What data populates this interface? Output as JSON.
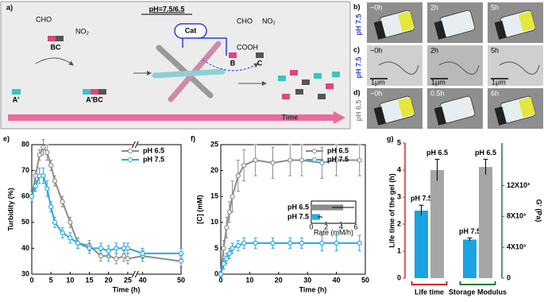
{
  "scheme": {
    "label": "a)",
    "title": "pH=7.5/6.5",
    "bc": "BC",
    "a": "A'",
    "abc": "A'BC",
    "cat": "Cat",
    "b": "B",
    "c": "C",
    "time": "Time",
    "cho": "CHO",
    "cooh": "COOH",
    "no2a": "NO₂",
    "no2b": "NO₂"
  },
  "photos": {
    "rows": [
      {
        "label": "b)",
        "side": "pH 7.5",
        "color": "#2a3fd6",
        "items": [
          "~0h",
          "2h",
          "5h"
        ]
      },
      {
        "label": "c)",
        "side": "pH 7.5",
        "color": "#2a3fd6",
        "items": [
          "~0h",
          "2h",
          "5h"
        ],
        "scale": "1μm"
      },
      {
        "label": "d)",
        "side": "pH 6.5",
        "color": "#8c8c8c",
        "items": [
          "~0h",
          "0.5h",
          "6h"
        ]
      }
    ]
  },
  "chart_data": [
    {
      "type": "line",
      "label": "e)",
      "xlabel": "Time (h)",
      "ylabel": "Turbidity (%)",
      "xlim": [
        0,
        50
      ],
      "xbreak": [
        25,
        40
      ],
      "xticks": [
        0,
        5,
        10,
        15,
        20,
        25,
        40,
        50
      ],
      "ylim": [
        30,
        80
      ],
      "yticks": [
        30,
        40,
        50,
        60,
        70,
        80
      ],
      "legend": "upper right",
      "x": [
        0,
        1,
        2,
        3,
        4,
        5,
        6,
        8,
        10,
        12,
        15,
        18,
        20,
        22,
        24,
        25,
        40,
        50
      ],
      "series": [
        {
          "name": "pH 6.5",
          "color": "#8c8c8c",
          "values": [
            60,
            68,
            76,
            79,
            77,
            72,
            66,
            58,
            50,
            42,
            41,
            37,
            37,
            36,
            37,
            36,
            37,
            35
          ],
          "errors": [
            2,
            2,
            2,
            3,
            3,
            2,
            2,
            2,
            2,
            2,
            2,
            2,
            2,
            2,
            2,
            2,
            2,
            2
          ]
        },
        {
          "name": "pH 7.5",
          "color": "#29a9e1",
          "values": [
            60,
            64,
            68,
            68,
            63,
            56,
            50,
            46,
            44,
            42,
            40,
            40,
            39,
            40,
            40,
            40,
            38,
            38
          ],
          "errors": [
            2,
            2,
            3,
            3,
            3,
            2,
            2,
            2,
            2,
            2,
            2,
            2,
            2,
            2,
            2,
            2,
            2,
            2
          ]
        }
      ]
    },
    {
      "type": "line",
      "label": "f)",
      "xlabel": "Time (h)",
      "ylabel": "[C] (mM)",
      "xlim": [
        0,
        50
      ],
      "xticks": [
        0,
        10,
        20,
        30,
        40,
        50
      ],
      "ylim": [
        0,
        25
      ],
      "yticks": [
        0,
        5,
        10,
        15,
        20,
        25
      ],
      "legend": "upper right",
      "x": [
        0,
        1,
        2,
        3,
        4,
        6,
        8,
        12,
        18,
        24,
        28,
        35,
        40,
        48
      ],
      "series": [
        {
          "name": "pH 6.5",
          "color": "#8c8c8c",
          "values": [
            0,
            5,
            9,
            12,
            15,
            19,
            21,
            22,
            21.5,
            22,
            22,
            21.5,
            22,
            22
          ],
          "errors": [
            0.5,
            1.5,
            2,
            2,
            3,
            3,
            3,
            3,
            3,
            3,
            3,
            3,
            3,
            3
          ]
        },
        {
          "name": "pH 7.5",
          "color": "#29a9e1",
          "values": [
            0,
            2,
            3,
            4,
            5,
            5.5,
            6,
            6,
            6,
            6,
            6,
            6,
            6,
            6
          ],
          "errors": [
            0.3,
            1,
            1,
            1,
            1,
            1,
            1,
            1,
            1,
            1,
            1,
            1.5,
            1.5,
            1.5
          ]
        }
      ]
    },
    {
      "type": "hbar",
      "xlabel": "Rate (mM/h)",
      "categories": [
        "pH 6.5",
        "pH 7.5"
      ],
      "values": [
        4.3,
        1.2
      ],
      "errors": [
        1.5,
        0.3
      ],
      "colors": [
        "#8c8c8c",
        "#29a9e1"
      ],
      "xlim": [
        0,
        6
      ],
      "xticks": [
        0,
        2,
        4,
        6
      ]
    },
    {
      "type": "bar",
      "label": "g)",
      "ylabel": "Life time of the gel (h)",
      "y2label": "G' (Pa)",
      "categories": [
        "Life time",
        "Storage Modulus"
      ],
      "category_axes": [
        "y",
        "y2"
      ],
      "category_colors": [
        "#d9262b",
        "#1a7a3a"
      ],
      "ylim": [
        0,
        5
      ],
      "yticks": [
        0,
        1,
        2,
        3,
        4,
        5
      ],
      "y2lim": [
        0,
        17500
      ],
      "y2ticks": [
        0,
        {
          "value": 4000,
          "label": "4X10³"
        },
        {
          "value": 8000,
          "label": "8X10³"
        },
        {
          "value": 12000,
          "label": "12X10³"
        }
      ],
      "series": [
        {
          "name": "pH 7.5",
          "color": "#1aa3e0",
          "values": [
            2.5,
            5000
          ],
          "errors": [
            0.2,
            200
          ]
        },
        {
          "name": "pH 6.5",
          "color": "#a6a6a6",
          "values": [
            4.0,
            14400
          ],
          "errors": [
            0.4,
            1000
          ]
        }
      ]
    }
  ]
}
